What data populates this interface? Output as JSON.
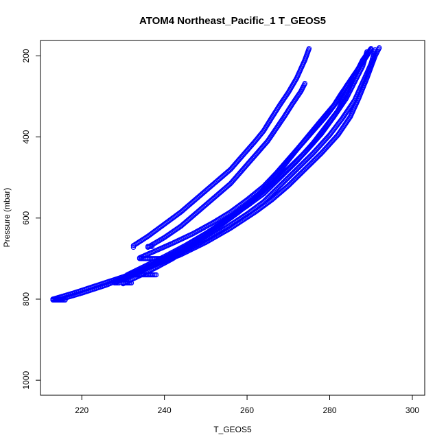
{
  "chart_data": {
    "type": "scatter",
    "title": "ATOM4 Northeast_Pacific_1 T_GEOS5",
    "xlabel": "T_GEOS5",
    "ylabel": "Pressure (mbar)",
    "xlim": [
      210,
      303
    ],
    "ylim": [
      1037,
      162
    ],
    "y_reversed": true,
    "xticks": [
      220,
      240,
      260,
      280,
      300
    ],
    "yticks": [
      200,
      400,
      600,
      800,
      1000
    ],
    "marker": "open-circle",
    "color": "#0000ff",
    "grid": false,
    "series": [
      {
        "profile_points": [
          [
            232.5,
            668
          ],
          [
            236,
            645
          ],
          [
            240,
            615
          ],
          [
            244,
            585
          ],
          [
            248,
            550
          ],
          [
            252,
            515
          ],
          [
            256,
            480
          ],
          [
            259,
            445
          ],
          [
            262,
            410
          ],
          [
            264,
            385
          ],
          [
            266,
            352
          ],
          [
            268,
            320
          ],
          [
            270,
            290
          ],
          [
            272,
            255
          ],
          [
            274,
            210
          ],
          [
            275,
            182
          ]
        ],
        "surface_layer": [
          [
            232.5,
            668
          ],
          [
            232.5,
            672
          ]
        ]
      },
      {
        "profile_points": [
          [
            236,
            672
          ],
          [
            240,
            648
          ],
          [
            244,
            620
          ],
          [
            248,
            585
          ],
          [
            252,
            550
          ],
          [
            256,
            515
          ],
          [
            259,
            480
          ],
          [
            262,
            445
          ],
          [
            265,
            410
          ],
          [
            267,
            380
          ],
          [
            269,
            350
          ],
          [
            271,
            318
          ],
          [
            273,
            288
          ],
          [
            274,
            268
          ]
        ],
        "surface_layer": [
          [
            236,
            670
          ],
          [
            237,
            670
          ]
        ]
      },
      {
        "profile_points": [
          [
            213,
            800
          ],
          [
            218,
            785
          ],
          [
            224,
            765
          ],
          [
            230,
            745
          ],
          [
            236,
            722
          ],
          [
            242,
            695
          ],
          [
            248,
            665
          ],
          [
            254,
            630
          ],
          [
            260,
            590
          ],
          [
            264,
            560
          ],
          [
            268,
            520
          ],
          [
            272,
            480
          ],
          [
            276,
            440
          ],
          [
            280,
            395
          ],
          [
            283,
            355
          ],
          [
            286,
            310
          ],
          [
            288,
            265
          ],
          [
            290,
            220
          ],
          [
            291,
            185
          ]
        ],
        "surface_layer": [
          [
            213,
            800
          ],
          [
            215,
            800
          ]
        ]
      },
      {
        "profile_points": [
          [
            215,
            800
          ],
          [
            220,
            785
          ],
          [
            226,
            765
          ],
          [
            232,
            740
          ],
          [
            238,
            715
          ],
          [
            244,
            690
          ],
          [
            250,
            660
          ],
          [
            256,
            625
          ],
          [
            262,
            585
          ],
          [
            266,
            555
          ],
          [
            270,
            520
          ],
          [
            274,
            480
          ],
          [
            278,
            440
          ],
          [
            282,
            395
          ],
          [
            285,
            350
          ],
          [
            287,
            305
          ],
          [
            289,
            255
          ],
          [
            291,
            200
          ],
          [
            292,
            180
          ]
        ],
        "surface_layer": [
          [
            213,
            802
          ],
          [
            216,
            802
          ]
        ]
      },
      {
        "profile_points": [
          [
            228,
            760
          ],
          [
            232,
            740
          ],
          [
            236,
            720
          ],
          [
            240,
            700
          ],
          [
            245,
            672
          ],
          [
            250,
            640
          ],
          [
            255,
            605
          ],
          [
            260,
            570
          ],
          [
            264,
            540
          ],
          [
            268,
            500
          ],
          [
            272,
            460
          ],
          [
            276,
            415
          ],
          [
            279,
            375
          ],
          [
            282,
            335
          ],
          [
            284,
            295
          ],
          [
            286,
            250
          ],
          [
            288,
            210
          ],
          [
            290,
            182
          ]
        ],
        "surface_layer": [
          [
            228,
            760
          ],
          [
            229,
            760
          ]
        ]
      },
      {
        "profile_points": [
          [
            230,
            762
          ],
          [
            234,
            742
          ],
          [
            238,
            722
          ],
          [
            242,
            700
          ],
          [
            246,
            672
          ],
          [
            250,
            645
          ],
          [
            254,
            615
          ],
          [
            258,
            585
          ],
          [
            262,
            550
          ],
          [
            266,
            515
          ],
          [
            270,
            478
          ],
          [
            274,
            438
          ],
          [
            278,
            392
          ],
          [
            281,
            350
          ],
          [
            284,
            305
          ],
          [
            286,
            265
          ],
          [
            288,
            225
          ],
          [
            289,
            190
          ]
        ],
        "surface_layer": [
          [
            230,
            760
          ],
          [
            232,
            760
          ]
        ]
      },
      {
        "profile_points": [
          [
            231,
            740
          ],
          [
            235,
            720
          ],
          [
            240,
            695
          ],
          [
            245,
            668
          ],
          [
            250,
            638
          ],
          [
            255,
            605
          ],
          [
            259,
            575
          ],
          [
            263,
            540
          ],
          [
            266,
            505
          ],
          [
            269,
            470
          ],
          [
            272,
            432
          ],
          [
            275,
            395
          ],
          [
            278,
            358
          ],
          [
            281,
            322
          ],
          [
            283,
            290
          ],
          [
            286,
            250
          ],
          [
            288,
            210
          ],
          [
            290,
            182
          ]
        ],
        "surface_layer": [
          [
            231,
            740
          ],
          [
            238,
            740
          ]
        ]
      },
      {
        "profile_points": [
          [
            234,
            698
          ],
          [
            238,
            680
          ],
          [
            242,
            662
          ],
          [
            247,
            638
          ],
          [
            252,
            610
          ],
          [
            256,
            585
          ],
          [
            260,
            555
          ],
          [
            264,
            522
          ],
          [
            267,
            490
          ],
          [
            270,
            455
          ],
          [
            273,
            420
          ],
          [
            276,
            385
          ],
          [
            279,
            350
          ],
          [
            282,
            310
          ],
          [
            284,
            275
          ],
          [
            286,
            245
          ],
          [
            288,
            215
          ],
          [
            290,
            185
          ]
        ],
        "surface_layer": [
          [
            234,
            700
          ],
          [
            240,
            700
          ]
        ]
      }
    ]
  }
}
